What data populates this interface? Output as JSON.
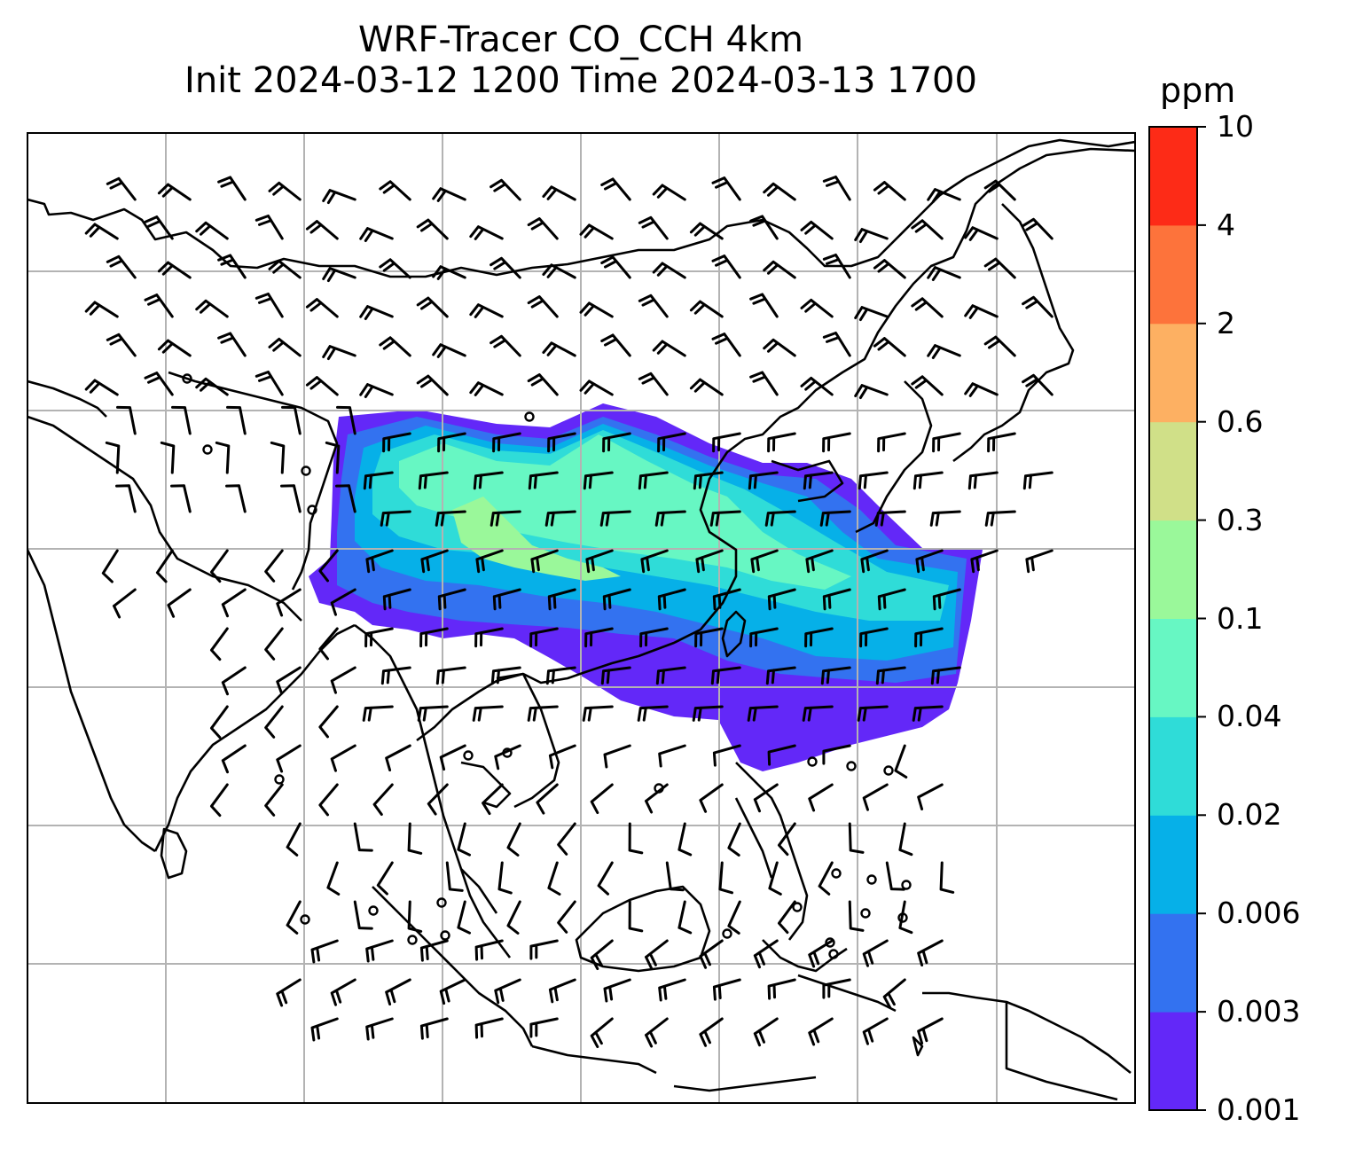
{
  "title": {
    "line1": "WRF-Tracer CO_CCH 4km",
    "line2": "Init 2024-03-12 1200 Time 2024-03-13 1700"
  },
  "colorbar": {
    "unit": "ppm",
    "ticks": [
      "0.001",
      "0.003",
      "0.006",
      "0.02",
      "0.04",
      "0.1",
      "0.3",
      "0.6",
      "2",
      "4",
      "10"
    ],
    "colors": [
      "#6328f8",
      "#3372f0",
      "#06b0e8",
      "#2fdcd8",
      "#67f7c3",
      "#9af89a",
      "#d0e088",
      "#fdb062",
      "#fd733b",
      "#fd2b17"
    ]
  },
  "map": {
    "gridline_color": "#b3b3b3",
    "coastline_color": "#000000",
    "barb_color": "#000000"
  }
}
